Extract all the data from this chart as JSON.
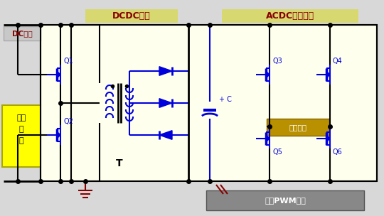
{
  "bg": "#d8d8d8",
  "circ_bg": "#ffffee",
  "wire_black": "#000000",
  "blue": "#0000dd",
  "darkred": "#880000",
  "yellow": "#ffff00",
  "gold": "#b89000",
  "gray_fb": "#888888",
  "tan": "#d8d870",
  "silver": "#c8c8c8",
  "lbl_dcdc": "DCDC升压",
  "lbl_acdc": "ACDC全桥逆变",
  "lbl_dc_in": "DC输入",
  "lbl_pp1": "推挥",
  "lbl_pp2": "控",
  "lbl_pp3": "制",
  "lbl_fb": "全桥PWM控制",
  "lbl_ac_out": "交流输出",
  "lbl_T": "T",
  "lbl_Q1": "Q1",
  "lbl_Q2": "Q2",
  "lbl_Q3": "Q3",
  "lbl_Q4": "Q4",
  "lbl_Q5": "Q5",
  "lbl_Q6": "Q6"
}
